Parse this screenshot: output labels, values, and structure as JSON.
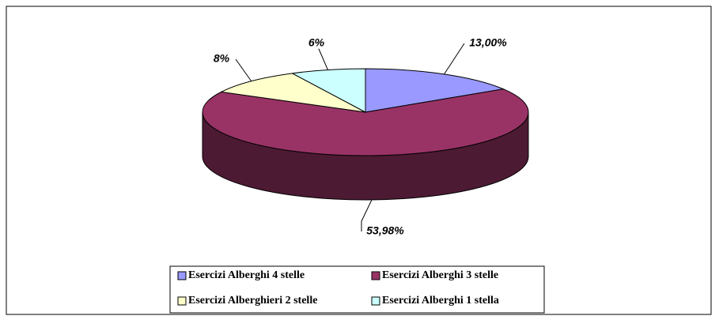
{
  "chart_data": {
    "type": "pie",
    "categories": [
      "Esercizi Alberghi 4 stelle",
      "Esercizi Alberghi 3 stelle",
      "Esercizi Alberghieri 2 stelle",
      "Esercizi Alberghi 1 stella"
    ],
    "values": [
      13.0,
      53.98,
      8,
      6
    ],
    "value_labels": [
      "13,00%",
      "53,98%",
      "8%",
      "6%"
    ],
    "colors": [
      "#9999ff",
      "#993366",
      "#ffffcc",
      "#ccffff"
    ],
    "legend": "bottom"
  }
}
